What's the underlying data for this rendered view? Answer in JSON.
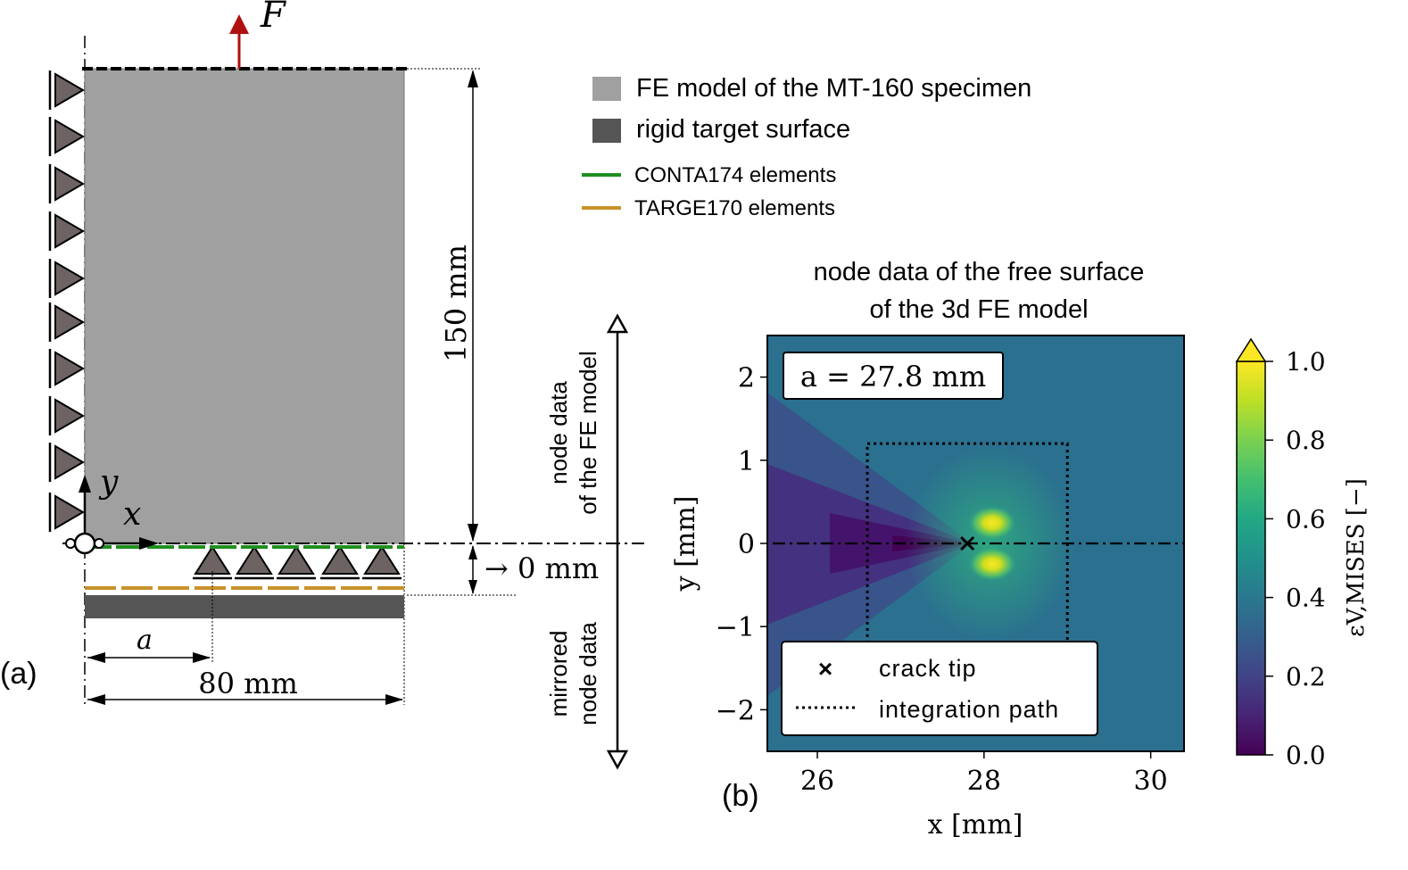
{
  "panel_a": {
    "label": "(a)",
    "force_label": "F",
    "y_axis_label": "y",
    "x_axis_label": "x",
    "crack_label": "a",
    "width_label": "80 mm",
    "height_label": "150 mm",
    "gap_label": "→ 0 mm",
    "legend": [
      {
        "kind": "swatch",
        "color": "#a0a0a0",
        "label": "FE model of the MT-160 specimen"
      },
      {
        "kind": "swatch",
        "color": "#555555",
        "label": "rigid target surface"
      },
      {
        "kind": "line",
        "color": "#1f8f1f",
        "label": "CONTA174 elements"
      },
      {
        "kind": "line",
        "color": "#c8922a",
        "label": "TARGE170 elements"
      }
    ],
    "side_labels": {
      "upper_line1": "node data",
      "upper_line2": "of the FE model",
      "lower_line1": "mirrored",
      "lower_line2": "node data"
    },
    "colors": {
      "specimen": "#a0a0a0",
      "rigid": "#555555",
      "contact": "#1f8f1f",
      "target": "#c8922a",
      "force": "#b01010",
      "support": "#6e6363"
    }
  },
  "panel_b": {
    "label": "(b)",
    "title_line1": "node data of the free surface",
    "title_line2": "of the 3d FE model",
    "annotation": "a = 27.8 mm",
    "legend": [
      {
        "marker": "×",
        "label": "crack tip"
      },
      {
        "marker": "dotted",
        "label": "integration path"
      }
    ],
    "colorbar_label": "εV,MISES [−]",
    "colorbar_ticks": [
      "0.0",
      "0.2",
      "0.4",
      "0.6",
      "0.8",
      "1.0"
    ]
  },
  "chart_data": {
    "type": "heatmap",
    "title": "node data of the free surface of the 3d FE model",
    "xlabel": "x [mm]",
    "ylabel": "y [mm]",
    "xlim": [
      25.4,
      30.4
    ],
    "ylim": [
      -2.5,
      2.5
    ],
    "x_ticks": [
      26,
      28,
      30
    ],
    "y_ticks": [
      -2,
      -1,
      0,
      1,
      2
    ],
    "colorbar": {
      "label": "εV,MISES [−]",
      "range": [
        0.0,
        1.0
      ],
      "ticks": [
        0.0,
        0.2,
        0.4,
        0.6,
        0.8,
        1.0
      ],
      "colormap": "viridis",
      "extend": "max"
    },
    "crack_tip": {
      "x": 27.8,
      "y": 0.0
    },
    "integration_path": {
      "x_min": 26.6,
      "x_max": 29.0,
      "y_min": -1.2,
      "y_max": 1.2
    },
    "symmetry_line_y": 0.0,
    "annotation": "a = 27.8 mm"
  }
}
